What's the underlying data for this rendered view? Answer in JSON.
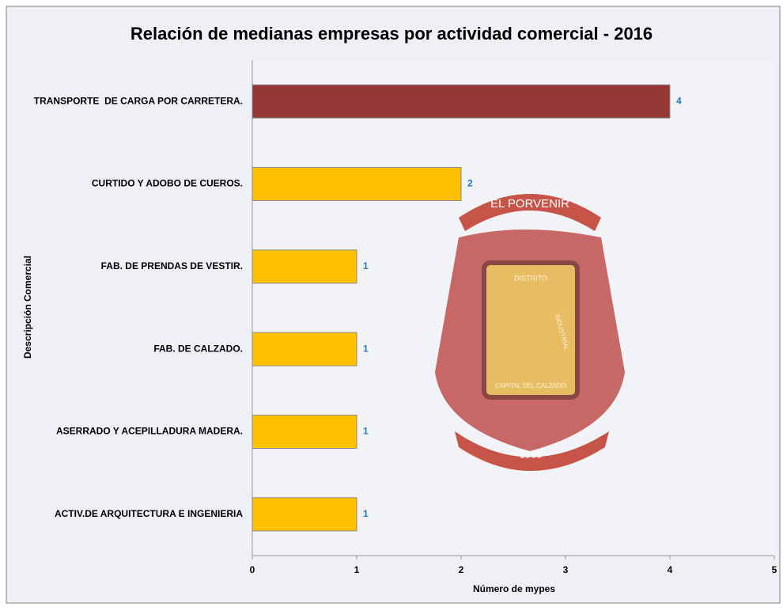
{
  "chart_data": {
    "type": "barh",
    "title": "Relación de medianas empresas por actividad comercial - 2016",
    "x_label": "Número de mypes",
    "y_label": "Descripción Comercial",
    "categories": [
      "TRANSPORTE  DE CARGA POR CARRETERA.",
      "CURTIDO Y ADOBO DE CUEROS.",
      "FAB. DE PRENDAS DE VESTIR.",
      "FAB. DE CALZADO.",
      "ASERRADO Y ACEPILLADURA MADERA.",
      "ACTIV.DE ARQUITECTURA E INGENIERIA"
    ],
    "values": [
      4,
      2,
      1,
      1,
      1,
      1
    ],
    "colors": [
      "#953735",
      "#ffc000",
      "#ffc000",
      "#ffc000",
      "#ffc000",
      "#ffc000"
    ],
    "label_color": "#2e75b6",
    "xlim": [
      0,
      5
    ],
    "xticks": [
      0,
      1,
      2,
      3,
      4,
      5
    ],
    "grid": false,
    "annotations": [
      "EL PORVENIR",
      "DISTRITO",
      "INDUSTRIAL",
      "CAPITAL DEL CALZADO",
      "1965"
    ]
  }
}
